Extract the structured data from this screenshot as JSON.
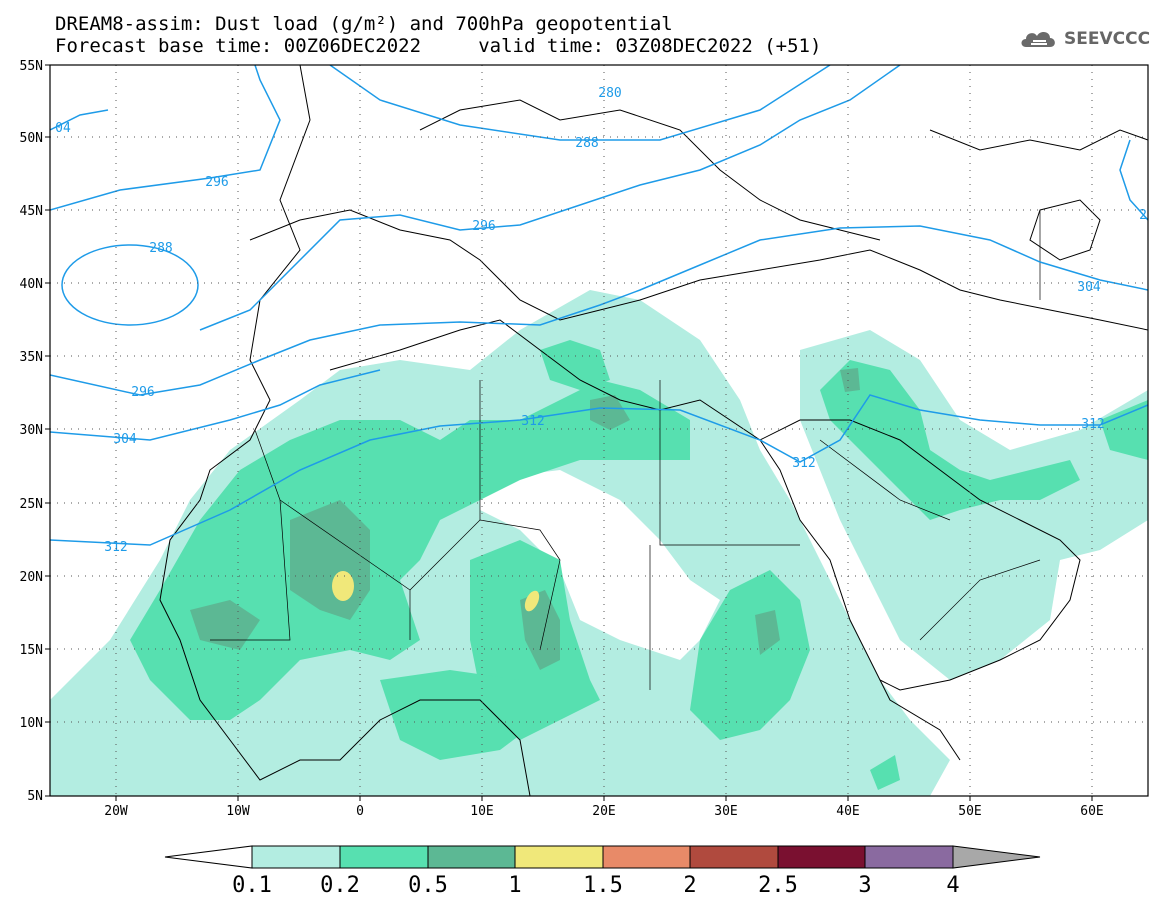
{
  "header": {
    "title_line1": "DREAM8-assim: Dust load (g/m²) and 700hPa geopotential",
    "title_line2": "Forecast base time: 00Z06DEC2022     valid time: 03Z08DEC2022 (+51)",
    "logo_text": "SEEVCCC",
    "logo_icon": "cloud-icon"
  },
  "axes": {
    "lat_labels": [
      "55N",
      "50N",
      "45N",
      "40N",
      "35N",
      "30N",
      "25N",
      "20N",
      "15N",
      "10N",
      "5N"
    ],
    "lon_labels": [
      "20W",
      "10W",
      "0",
      "10E",
      "20E",
      "30E",
      "40E",
      "50E",
      "60E"
    ]
  },
  "contours": {
    "labels": [
      "04",
      "296",
      "288",
      "280",
      "288",
      "296",
      "304",
      "296",
      "304",
      "312",
      "312",
      "312",
      "312",
      "2"
    ]
  },
  "colorbar": {
    "tick_labels": [
      "0.1",
      "0.2",
      "0.5",
      "1",
      "1.5",
      "2",
      "2.5",
      "3",
      "4"
    ],
    "colors": [
      "#ffffff",
      "#b3ede1",
      "#57e0b0",
      "#5cb894",
      "#f0e87a",
      "#e88a68",
      "#b04a3e",
      "#7a1030",
      "#8a6aa0",
      "#a8a8a8"
    ]
  },
  "dust_colors": {
    "light": "#b3ede1",
    "medium": "#57e0b0",
    "dark": "#5cb894",
    "yellow": "#f0e87a"
  },
  "contour_color": "#1e9be8"
}
